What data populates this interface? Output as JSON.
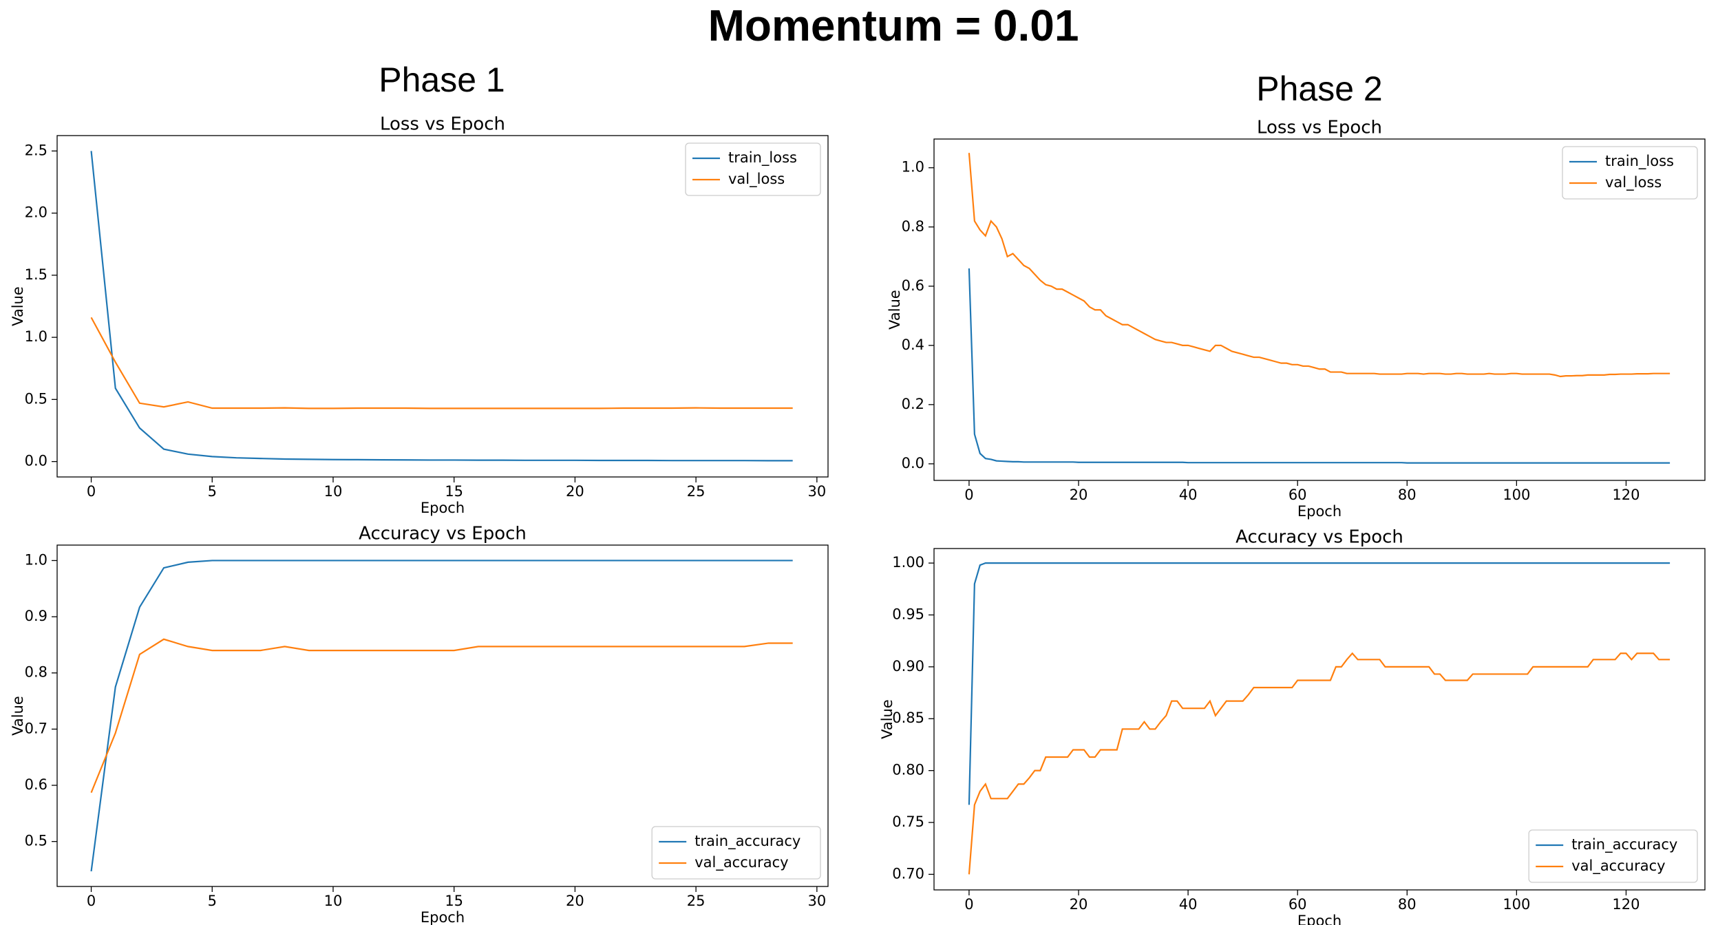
{
  "title": "Momentum = 0.01",
  "phases": [
    "Phase 1",
    "Phase 2"
  ],
  "chart_data": [
    {
      "type": "line",
      "title": "Loss vs Epoch",
      "xlabel": "Epoch",
      "ylabel": "Value",
      "x": [
        0,
        1,
        2,
        3,
        4,
        5,
        6,
        7,
        8,
        9,
        10,
        11,
        12,
        13,
        14,
        15,
        16,
        17,
        18,
        19,
        20,
        21,
        22,
        23,
        24,
        25,
        26,
        27,
        28,
        29
      ],
      "series": [
        {
          "name": "train_loss",
          "color": "#1f77b4",
          "values": [
            2.5,
            0.59,
            0.27,
            0.1,
            0.06,
            0.04,
            0.03,
            0.025,
            0.02,
            0.018,
            0.016,
            0.015,
            0.014,
            0.013,
            0.012,
            0.012,
            0.011,
            0.011,
            0.01,
            0.01,
            0.01,
            0.009,
            0.009,
            0.009,
            0.008,
            0.008,
            0.008,
            0.008,
            0.007,
            0.007
          ]
        },
        {
          "name": "val_loss",
          "color": "#ff7f0e",
          "values": [
            1.16,
            0.8,
            0.47,
            0.44,
            0.48,
            0.43,
            0.43,
            0.43,
            0.432,
            0.428,
            0.428,
            0.43,
            0.43,
            0.43,
            0.428,
            0.428,
            0.428,
            0.428,
            0.428,
            0.428,
            0.428,
            0.428,
            0.43,
            0.43,
            0.43,
            0.432,
            0.43,
            0.43,
            0.43,
            0.43
          ]
        }
      ],
      "xlim": [
        -1.41,
        30.46
      ],
      "ylim": [
        -0.124,
        2.624
      ],
      "xticks": [
        0,
        5,
        10,
        15,
        20,
        25,
        30
      ],
      "yticks": [
        {
          "value": 0,
          "label": "0.0"
        },
        0.5,
        {
          "value": 1,
          "label": "1.0"
        },
        1.5,
        {
          "value": 2,
          "label": "2.0"
        },
        2.5
      ],
      "legend": "upper right"
    },
    {
      "type": "line",
      "title": "Accuracy vs Epoch",
      "xlabel": "Epoch",
      "ylabel": "Value",
      "x": [
        0,
        1,
        2,
        3,
        4,
        5,
        6,
        7,
        8,
        9,
        10,
        11,
        12,
        13,
        14,
        15,
        16,
        17,
        18,
        19,
        20,
        21,
        22,
        23,
        24,
        25,
        26,
        27,
        28,
        29
      ],
      "series": [
        {
          "name": "train_accuracy",
          "color": "#1f77b4",
          "values": [
            0.447,
            0.775,
            0.917,
            0.987,
            0.997,
            1,
            1,
            1,
            1,
            1,
            1,
            1,
            1,
            1,
            1,
            1,
            1,
            1,
            1,
            1,
            1,
            1,
            1,
            1,
            1,
            1,
            1,
            1,
            1,
            1
          ]
        },
        {
          "name": "val_accuracy",
          "color": "#ff7f0e",
          "values": [
            0.587,
            0.693,
            0.833,
            0.86,
            0.847,
            0.84,
            0.84,
            0.84,
            0.847,
            0.84,
            0.84,
            0.84,
            0.84,
            0.84,
            0.84,
            0.84,
            0.847,
            0.847,
            0.847,
            0.847,
            0.847,
            0.847,
            0.847,
            0.847,
            0.847,
            0.847,
            0.847,
            0.847,
            0.853,
            0.853
          ]
        }
      ],
      "xlim": [
        -1.41,
        30.46
      ],
      "ylim": [
        0.42,
        1.0275
      ],
      "xticks": [
        0,
        5,
        10,
        15,
        20,
        25,
        30
      ],
      "yticks": [
        0.5,
        0.6,
        0.7,
        0.8,
        0.9,
        {
          "value": 1,
          "label": "1.0"
        }
      ],
      "legend": "lower right"
    },
    {
      "type": "line",
      "title": "Loss vs Epoch",
      "xlabel": "Epoch",
      "ylabel": "Value",
      "x": [
        0,
        1,
        2,
        3,
        4,
        5,
        6,
        7,
        8,
        9,
        10,
        11,
        12,
        13,
        14,
        15,
        16,
        17,
        18,
        19,
        20,
        21,
        22,
        23,
        24,
        25,
        26,
        27,
        28,
        29,
        30,
        31,
        32,
        33,
        34,
        35,
        36,
        37,
        38,
        39,
        40,
        41,
        42,
        43,
        44,
        45,
        46,
        47,
        48,
        49,
        50,
        51,
        52,
        53,
        54,
        55,
        56,
        57,
        58,
        59,
        60,
        61,
        62,
        63,
        64,
        65,
        66,
        67,
        68,
        69,
        70,
        71,
        72,
        73,
        74,
        75,
        76,
        77,
        78,
        79,
        80,
        81,
        82,
        83,
        84,
        85,
        86,
        87,
        88,
        89,
        90,
        91,
        92,
        93,
        94,
        95,
        96,
        97,
        98,
        99,
        100,
        101,
        102,
        103,
        104,
        105,
        106,
        107,
        108,
        109,
        110,
        111,
        112,
        113,
        114,
        115,
        116,
        117,
        118,
        119,
        120,
        121,
        122,
        123,
        124,
        125,
        126,
        127,
        128
      ],
      "series": [
        {
          "name": "train_loss",
          "color": "#1f77b4",
          "values": [
            0.66,
            0.1,
            0.035,
            0.018,
            0.015,
            0.01,
            0.009,
            0.008,
            0.007,
            0.007,
            0.006,
            0.006,
            0.006,
            0.006,
            0.006,
            0.006,
            0.006,
            0.006,
            0.006,
            0.006,
            0.005,
            0.005,
            0.005,
            0.005,
            0.005,
            0.005,
            0.005,
            0.005,
            0.005,
            0.005,
            0.005,
            0.005,
            0.005,
            0.005,
            0.005,
            0.005,
            0.005,
            0.005,
            0.005,
            0.005,
            0.004,
            0.004,
            0.004,
            0.004,
            0.004,
            0.004,
            0.004,
            0.004,
            0.004,
            0.004,
            0.004,
            0.004,
            0.004,
            0.004,
            0.004,
            0.004,
            0.004,
            0.004,
            0.004,
            0.004,
            0.004,
            0.004,
            0.004,
            0.004,
            0.004,
            0.004,
            0.004,
            0.004,
            0.004,
            0.004,
            0.004,
            0.004,
            0.004,
            0.004,
            0.004,
            0.004,
            0.004,
            0.004,
            0.004,
            0.004,
            0.003,
            0.003,
            0.003,
            0.003,
            0.003,
            0.003,
            0.003,
            0.003,
            0.003,
            0.003,
            0.003,
            0.003,
            0.003,
            0.003,
            0.003,
            0.003,
            0.003,
            0.003,
            0.003,
            0.003,
            0.003,
            0.003,
            0.003,
            0.003,
            0.003,
            0.003,
            0.003,
            0.003,
            0.003,
            0.003,
            0.003,
            0.003,
            0.003,
            0.003,
            0.003,
            0.003,
            0.003,
            0.003,
            0.003,
            0.003,
            0.003,
            0.003,
            0.003,
            0.003,
            0.003,
            0.003,
            0.003,
            0.003,
            0.003
          ]
        },
        {
          "name": "val_loss",
          "color": "#ff7f0e",
          "values": [
            1.05,
            0.82,
            0.79,
            0.77,
            0.82,
            0.8,
            0.76,
            0.7,
            0.71,
            0.69,
            0.67,
            0.66,
            0.64,
            0.62,
            0.605,
            0.6,
            0.59,
            0.59,
            0.58,
            0.57,
            0.56,
            0.55,
            0.53,
            0.52,
            0.52,
            0.5,
            0.49,
            0.48,
            0.47,
            0.47,
            0.46,
            0.45,
            0.44,
            0.43,
            0.42,
            0.415,
            0.41,
            0.41,
            0.405,
            0.4,
            0.4,
            0.395,
            0.39,
            0.385,
            0.38,
            0.4,
            0.4,
            0.39,
            0.38,
            0.375,
            0.37,
            0.365,
            0.36,
            0.36,
            0.355,
            0.35,
            0.345,
            0.34,
            0.34,
            0.335,
            0.335,
            0.33,
            0.33,
            0.325,
            0.32,
            0.32,
            0.31,
            0.31,
            0.31,
            0.305,
            0.305,
            0.305,
            0.305,
            0.305,
            0.305,
            0.303,
            0.303,
            0.303,
            0.303,
            0.303,
            0.305,
            0.305,
            0.305,
            0.303,
            0.305,
            0.305,
            0.305,
            0.303,
            0.303,
            0.305,
            0.305,
            0.303,
            0.303,
            0.303,
            0.303,
            0.305,
            0.303,
            0.303,
            0.303,
            0.305,
            0.305,
            0.303,
            0.303,
            0.303,
            0.303,
            0.303,
            0.303,
            0.3,
            0.295,
            0.297,
            0.297,
            0.298,
            0.298,
            0.3,
            0.3,
            0.3,
            0.3,
            0.302,
            0.302,
            0.303,
            0.303,
            0.303,
            0.304,
            0.304,
            0.304,
            0.305,
            0.305,
            0.305,
            0.305
          ]
        }
      ],
      "xlim": [
        -6.4,
        134.4
      ],
      "ylim": [
        -0.056,
        1.097
      ],
      "xticks": [
        0,
        20,
        40,
        60,
        80,
        100,
        120
      ],
      "yticks": [
        {
          "value": 0,
          "label": "0.0"
        },
        0.2,
        0.4,
        0.6,
        0.8,
        {
          "value": 1,
          "label": "1.0"
        }
      ],
      "legend": "upper right"
    },
    {
      "type": "line",
      "title": "Accuracy vs Epoch",
      "xlabel": "Epoch",
      "ylabel": "Value",
      "x": [
        0,
        1,
        2,
        3,
        4,
        5,
        6,
        7,
        8,
        9,
        10,
        11,
        12,
        13,
        14,
        15,
        16,
        17,
        18,
        19,
        20,
        21,
        22,
        23,
        24,
        25,
        26,
        27,
        28,
        29,
        30,
        31,
        32,
        33,
        34,
        35,
        36,
        37,
        38,
        39,
        40,
        41,
        42,
        43,
        44,
        45,
        46,
        47,
        48,
        49,
        50,
        51,
        52,
        53,
        54,
        55,
        56,
        57,
        58,
        59,
        60,
        61,
        62,
        63,
        64,
        65,
        66,
        67,
        68,
        69,
        70,
        71,
        72,
        73,
        74,
        75,
        76,
        77,
        78,
        79,
        80,
        81,
        82,
        83,
        84,
        85,
        86,
        87,
        88,
        89,
        90,
        91,
        92,
        93,
        94,
        95,
        96,
        97,
        98,
        99,
        100,
        101,
        102,
        103,
        104,
        105,
        106,
        107,
        108,
        109,
        110,
        111,
        112,
        113,
        114,
        115,
        116,
        117,
        118,
        119,
        120,
        121,
        122,
        123,
        124,
        125,
        126,
        127,
        128
      ],
      "series": [
        {
          "name": "train_accuracy",
          "color": "#1f77b4",
          "values": [
            0.767,
            0.98,
            0.998,
            1,
            1,
            1,
            1,
            1,
            1,
            1,
            1,
            1,
            1,
            1,
            1,
            1,
            1,
            1,
            1,
            1,
            1,
            1,
            1,
            1,
            1,
            1,
            1,
            1,
            1,
            1,
            1,
            1,
            1,
            1,
            1,
            1,
            1,
            1,
            1,
            1,
            1,
            1,
            1,
            1,
            1,
            1,
            1,
            1,
            1,
            1,
            1,
            1,
            1,
            1,
            1,
            1,
            1,
            1,
            1,
            1,
            1,
            1,
            1,
            1,
            1,
            1,
            1,
            1,
            1,
            1,
            1,
            1,
            1,
            1,
            1,
            1,
            1,
            1,
            1,
            1,
            1,
            1,
            1,
            1,
            1,
            1,
            1,
            1,
            1,
            1,
            1,
            1,
            1,
            1,
            1,
            1,
            1,
            1,
            1,
            1,
            1,
            1,
            1,
            1,
            1,
            1,
            1,
            1,
            1,
            1,
            1,
            1,
            1,
            1,
            1,
            1,
            1,
            1,
            1,
            1,
            1,
            1,
            1,
            1,
            1,
            1,
            1,
            1,
            1
          ]
        },
        {
          "name": "val_accuracy",
          "color": "#ff7f0e",
          "values": [
            0.7,
            0.767,
            0.78,
            0.787,
            0.773,
            0.773,
            0.773,
            0.773,
            0.78,
            0.787,
            0.787,
            0.793,
            0.8,
            0.8,
            0.813,
            0.813,
            0.813,
            0.813,
            0.813,
            0.82,
            0.82,
            0.82,
            0.813,
            0.813,
            0.82,
            0.82,
            0.82,
            0.82,
            0.84,
            0.84,
            0.84,
            0.84,
            0.847,
            0.84,
            0.84,
            0.847,
            0.853,
            0.867,
            0.867,
            0.86,
            0.86,
            0.86,
            0.86,
            0.86,
            0.867,
            0.853,
            0.86,
            0.867,
            0.867,
            0.867,
            0.867,
            0.873,
            0.88,
            0.88,
            0.88,
            0.88,
            0.88,
            0.88,
            0.88,
            0.88,
            0.887,
            0.887,
            0.887,
            0.887,
            0.887,
            0.887,
            0.887,
            0.9,
            0.9,
            0.907,
            0.913,
            0.907,
            0.907,
            0.907,
            0.907,
            0.907,
            0.9,
            0.9,
            0.9,
            0.9,
            0.9,
            0.9,
            0.9,
            0.9,
            0.9,
            0.893,
            0.893,
            0.887,
            0.887,
            0.887,
            0.887,
            0.887,
            0.893,
            0.893,
            0.893,
            0.893,
            0.893,
            0.893,
            0.893,
            0.893,
            0.893,
            0.893,
            0.893,
            0.9,
            0.9,
            0.9,
            0.9,
            0.9,
            0.9,
            0.9,
            0.9,
            0.9,
            0.9,
            0.9,
            0.907,
            0.907,
            0.907,
            0.907,
            0.907,
            0.913,
            0.913,
            0.907,
            0.913,
            0.913,
            0.913,
            0.913,
            0.907,
            0.907,
            0.907
          ]
        }
      ],
      "xlim": [
        -6.4,
        134.4
      ],
      "ylim": [
        0.685,
        1.014
      ],
      "xticks": [
        0,
        20,
        40,
        60,
        80,
        100,
        120
      ],
      "yticks": [
        {
          "value": 0.7,
          "label": "0.70"
        },
        0.75,
        {
          "value": 0.8,
          "label": "0.80"
        },
        0.85,
        {
          "value": 0.9,
          "label": "0.90"
        },
        0.95,
        {
          "value": 1,
          "label": "1.00"
        }
      ],
      "legend": "lower right"
    }
  ]
}
